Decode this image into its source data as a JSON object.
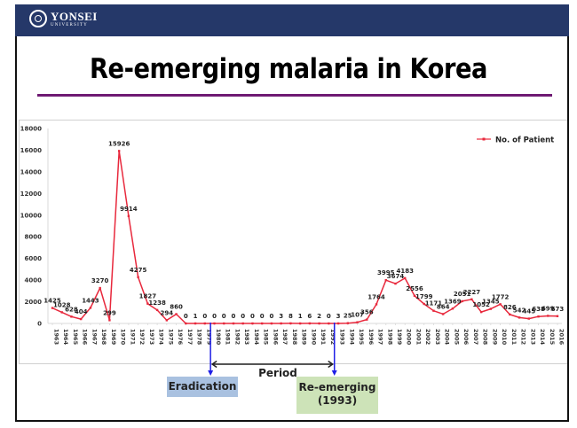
{
  "header": {
    "logo_main": "YONSEI",
    "logo_sub": "UNIVERSITY",
    "logo_icon": "university-emblem-icon"
  },
  "slide": {
    "title": "Re-emerging malaria in Korea"
  },
  "annotations": {
    "eradication_label": "Eradication",
    "reemerging_label": "Re-emerging",
    "reemerging_year": "(1993)",
    "period_label": "Period"
  },
  "colors": {
    "header_bg": "#253869",
    "title_rule": "#6f1a73",
    "series_line": "#e8283c",
    "marker_line": "#1f1fe6",
    "eradication_box": "#a9c1e0",
    "reemerging_box": "#cde3b8"
  },
  "chart_data": {
    "type": "line",
    "title": "",
    "xlabel": "",
    "ylabel": "",
    "ylim": [
      0,
      18000
    ],
    "yticks": [
      0,
      2000,
      4000,
      6000,
      8000,
      10000,
      12000,
      14000,
      16000,
      18000
    ],
    "grid": false,
    "legend_position": "top-right",
    "categories": [
      "1963",
      "1964",
      "1965",
      "1966",
      "1967",
      "1968",
      "1969",
      "1970",
      "1971",
      "1972",
      "1973",
      "1974",
      "1975",
      "1976",
      "1977",
      "1978",
      "1979",
      "1980",
      "1981",
      "1982",
      "1983",
      "1984",
      "1985",
      "1986",
      "1987",
      "1988",
      "1989",
      "1990",
      "1991",
      "1992",
      "1993",
      "1994",
      "1995",
      "1996",
      "1997",
      "1998",
      "1999",
      "2000",
      "2001",
      "2002",
      "2003",
      "2004",
      "2005",
      "2006",
      "2007",
      "2008",
      "2009",
      "2010",
      "2011",
      "2012",
      "2013",
      "2014",
      "2015",
      "2016"
    ],
    "series": [
      {
        "name": "No. of Patient",
        "values": [
          1425,
          1028,
          628,
          404,
          1443,
          3270,
          299,
          15926,
          9914,
          4275,
          1827,
          1238,
          294,
          860,
          0,
          1,
          0,
          0,
          0,
          0,
          0,
          0,
          0,
          0,
          3,
          8,
          1,
          6,
          2,
          0,
          3,
          25,
          107,
          356,
          1764,
          3995,
          3674,
          4183,
          2556,
          1799,
          1171,
          864,
          1369,
          2051,
          2227,
          1052,
          1345,
          1772,
          826,
          542,
          445,
          638,
          699,
          673
        ]
      }
    ],
    "vertical_markers": [
      {
        "between": [
          "1979",
          "1980"
        ],
        "label": "Eradication"
      },
      {
        "between": [
          "1992",
          "1993"
        ],
        "label": "Re-emerging (1993)"
      }
    ]
  }
}
